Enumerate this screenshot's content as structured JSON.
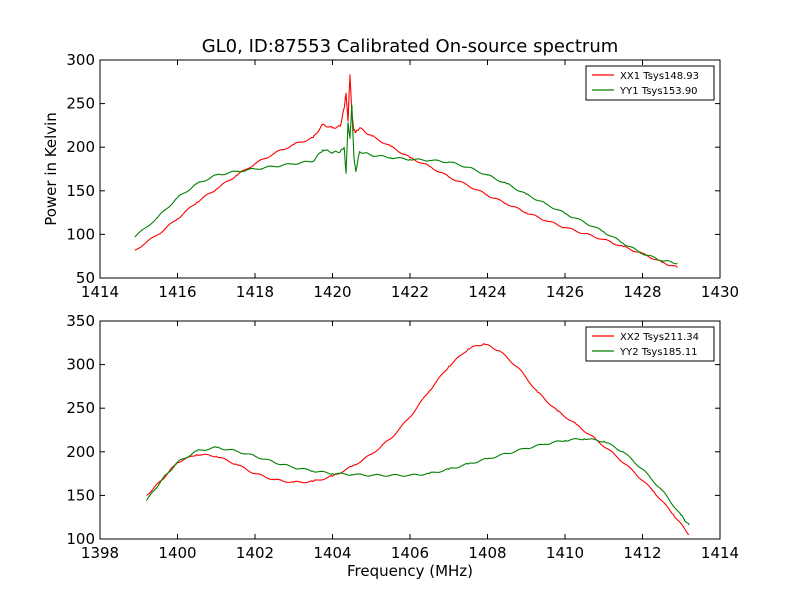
{
  "chart_data": [
    {
      "type": "line",
      "title": "GL0, ID:87553 Calibrated On-source spectrum",
      "xlabel": "",
      "ylabel": "Power in Kelvin",
      "xlim": [
        1414,
        1430
      ],
      "ylim": [
        50,
        300
      ],
      "xticks": [
        1414,
        1416,
        1418,
        1420,
        1422,
        1424,
        1426,
        1428,
        1430
      ],
      "yticks": [
        50,
        100,
        150,
        200,
        250,
        300
      ],
      "grid": false,
      "legend_position": "top-right",
      "series": [
        {
          "name": "XX1 Tsys148.93",
          "color": "#ff0000",
          "x": [
            1414.9,
            1415.5,
            1416.0,
            1416.5,
            1417.0,
            1417.5,
            1418.0,
            1418.5,
            1419.0,
            1419.5,
            1419.75,
            1420.0,
            1420.2,
            1420.3,
            1420.35,
            1420.4,
            1420.45,
            1420.5,
            1420.55,
            1420.6,
            1420.7,
            1421.0,
            1421.5,
            1422.0,
            1422.5,
            1423.0,
            1423.5,
            1424.0,
            1424.5,
            1425.0,
            1425.5,
            1426.0,
            1426.5,
            1427.0,
            1427.5,
            1428.0,
            1428.5,
            1428.9
          ],
          "y": [
            82,
            100,
            118,
            137,
            152,
            167,
            181,
            193,
            203,
            211,
            226,
            222,
            224,
            245,
            262,
            230,
            283,
            238,
            220,
            217,
            222,
            213,
            201,
            188,
            178,
            166,
            156,
            145,
            135,
            125,
            116,
            108,
            101,
            94,
            86,
            78,
            68,
            62
          ]
        },
        {
          "name": "YY1 Tsys153.90",
          "color": "#008000",
          "x": [
            1414.9,
            1415.5,
            1416.0,
            1416.5,
            1417.0,
            1417.5,
            1418.0,
            1418.5,
            1419.0,
            1419.5,
            1419.75,
            1420.0,
            1420.2,
            1420.3,
            1420.35,
            1420.4,
            1420.45,
            1420.5,
            1420.55,
            1420.6,
            1420.7,
            1421.0,
            1421.5,
            1422.0,
            1422.5,
            1423.0,
            1423.5,
            1424.0,
            1424.5,
            1425.0,
            1425.5,
            1426.0,
            1426.5,
            1427.0,
            1427.5,
            1428.0,
            1428.5,
            1428.9
          ],
          "y": [
            97,
            120,
            142,
            158,
            168,
            172,
            175,
            178,
            181,
            184,
            197,
            194,
            195,
            200,
            170,
            228,
            210,
            248,
            190,
            172,
            195,
            191,
            188,
            186,
            185,
            183,
            177,
            168,
            158,
            146,
            135,
            124,
            114,
            103,
            90,
            78,
            70,
            67
          ]
        }
      ]
    },
    {
      "type": "line",
      "title": "",
      "xlabel": "Frequency (MHz)",
      "ylabel": "",
      "xlim": [
        1398,
        1414
      ],
      "ylim": [
        100,
        350
      ],
      "xticks": [
        1398,
        1400,
        1402,
        1404,
        1406,
        1408,
        1410,
        1412,
        1414
      ],
      "yticks": [
        100,
        150,
        200,
        250,
        300,
        350
      ],
      "grid": false,
      "legend_position": "top-right",
      "series": [
        {
          "name": "XX2 Tsys211.34",
          "color": "#ff0000",
          "x": [
            1399.2,
            1399.6,
            1400.0,
            1400.5,
            1401.0,
            1401.5,
            1402.0,
            1402.5,
            1403.0,
            1403.5,
            1404.0,
            1404.5,
            1405.0,
            1405.5,
            1406.0,
            1406.5,
            1407.0,
            1407.5,
            1407.9,
            1408.3,
            1408.8,
            1409.3,
            1409.8,
            1410.3,
            1410.8,
            1411.3,
            1411.8,
            1412.3,
            1412.8,
            1413.2
          ],
          "y": [
            150,
            168,
            188,
            197,
            195,
            186,
            175,
            168,
            165,
            166,
            172,
            183,
            197,
            215,
            240,
            270,
            298,
            318,
            324,
            316,
            296,
            268,
            247,
            231,
            214,
            196,
            176,
            154,
            128,
            105
          ]
        },
        {
          "name": "YY2 Tsys185.11",
          "color": "#008000",
          "x": [
            1399.2,
            1399.6,
            1400.0,
            1400.5,
            1401.0,
            1401.5,
            1402.0,
            1402.5,
            1403.0,
            1403.5,
            1404.0,
            1404.5,
            1405.0,
            1405.5,
            1406.0,
            1406.5,
            1407.0,
            1407.5,
            1408.0,
            1408.5,
            1409.0,
            1409.5,
            1410.0,
            1410.5,
            1411.0,
            1411.5,
            1412.0,
            1412.5,
            1413.0,
            1413.2
          ],
          "y": [
            144,
            168,
            188,
            201,
            205,
            201,
            195,
            188,
            182,
            178,
            175,
            174,
            173,
            173,
            173,
            175,
            180,
            186,
            192,
            198,
            204,
            209,
            213,
            215,
            212,
            200,
            180,
            156,
            127,
            116
          ]
        }
      ]
    }
  ]
}
